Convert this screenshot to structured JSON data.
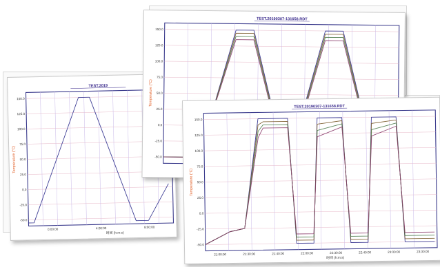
{
  "chart_data": [
    {
      "type": "line",
      "title": "TEST.2019",
      "ylabel": "Temperature (°C)",
      "xlabel": "时间 (h:m:s)",
      "ylim": [
        -60,
        160
      ],
      "yticks": [
        "150.0",
        "125.0",
        "100.0",
        "75.0",
        "50.0",
        "25.0",
        "0.0",
        "-25.0",
        "-50.0"
      ],
      "xticks": [
        "0:00:00",
        "4:00:00",
        "8:00:00"
      ],
      "x": [
        0,
        0.4,
        3.8,
        4.6,
        7.8,
        8.7,
        10.2
      ],
      "series": [
        {
          "values": [
            -55,
            -55,
            150,
            150,
            -55,
            -55,
            5
          ]
        }
      ]
    },
    {
      "type": "line",
      "title": "TEST.20190307-131658.RDT",
      "ylabel": "Temperature (°C)",
      "ylim": [
        -60,
        160
      ],
      "yticks": [
        "150.0",
        "125.0",
        "100.0",
        "75.0",
        "50.0",
        "25.0",
        "0.0",
        "-25.0",
        "-50.0"
      ],
      "x": [
        0,
        1.2,
        2.0,
        3.2,
        4.0,
        5.2,
        5.9,
        7.2,
        8.0,
        9.2,
        9.9,
        10.4
      ],
      "series": [
        {
          "values": [
            -50,
            -50,
            0,
            150,
            150,
            -20,
            -20,
            150,
            150,
            -20,
            -20,
            0
          ]
        },
        {
          "values": [
            -50,
            -50,
            0,
            145,
            145,
            -22,
            -22,
            145,
            145,
            -22,
            -22,
            0
          ]
        },
        {
          "values": [
            -50,
            -50,
            0,
            140,
            140,
            -24,
            -24,
            140,
            140,
            -24,
            -24,
            0
          ]
        },
        {
          "values": [
            -50,
            -50,
            0,
            135,
            135,
            -26,
            -26,
            135,
            135,
            -26,
            -26,
            0
          ]
        }
      ]
    },
    {
      "type": "line",
      "title": "TEST.20190307-131658.RDT",
      "ylabel": "Temperature (°C)",
      "xlabel": "时间 (h:m:s)",
      "ylim": [
        -60,
        160
      ],
      "yticks": [
        "150.0",
        "125.0",
        "100.0",
        "75.0",
        "50.0",
        "25.0",
        "0.0",
        "-25.0",
        "-50.0"
      ],
      "xticks": [
        "21:00:00",
        "21:30:00",
        "21:40:00",
        "22:00:00",
        "22:30:00",
        "22:40:00",
        "23:00:00",
        "23:30:00"
      ],
      "x": [
        0,
        1.0,
        1.6,
        2.2,
        2.4,
        3.4,
        3.7,
        4.4,
        4.6,
        5.6,
        5.9,
        6.6,
        6.8,
        7.8,
        8.1,
        8.8,
        9.3
      ],
      "series": [
        {
          "values": [
            -50,
            -30,
            -25,
            150,
            150,
            150,
            -50,
            -50,
            150,
            150,
            -50,
            -50,
            150,
            150,
            -50,
            -50,
            -50
          ]
        },
        {
          "values": [
            -50,
            -30,
            -25,
            140,
            145,
            145,
            -45,
            -45,
            140,
            145,
            -45,
            -45,
            140,
            145,
            -45,
            -45,
            -45
          ]
        },
        {
          "values": [
            -50,
            -30,
            -25,
            130,
            140,
            140,
            -40,
            -40,
            130,
            140,
            -40,
            -40,
            130,
            140,
            -40,
            -40,
            -40
          ]
        },
        {
          "values": [
            -50,
            -30,
            -25,
            120,
            135,
            135,
            -35,
            -35,
            120,
            135,
            -35,
            -35,
            120,
            135,
            -35,
            -35,
            -35
          ]
        }
      ]
    }
  ]
}
